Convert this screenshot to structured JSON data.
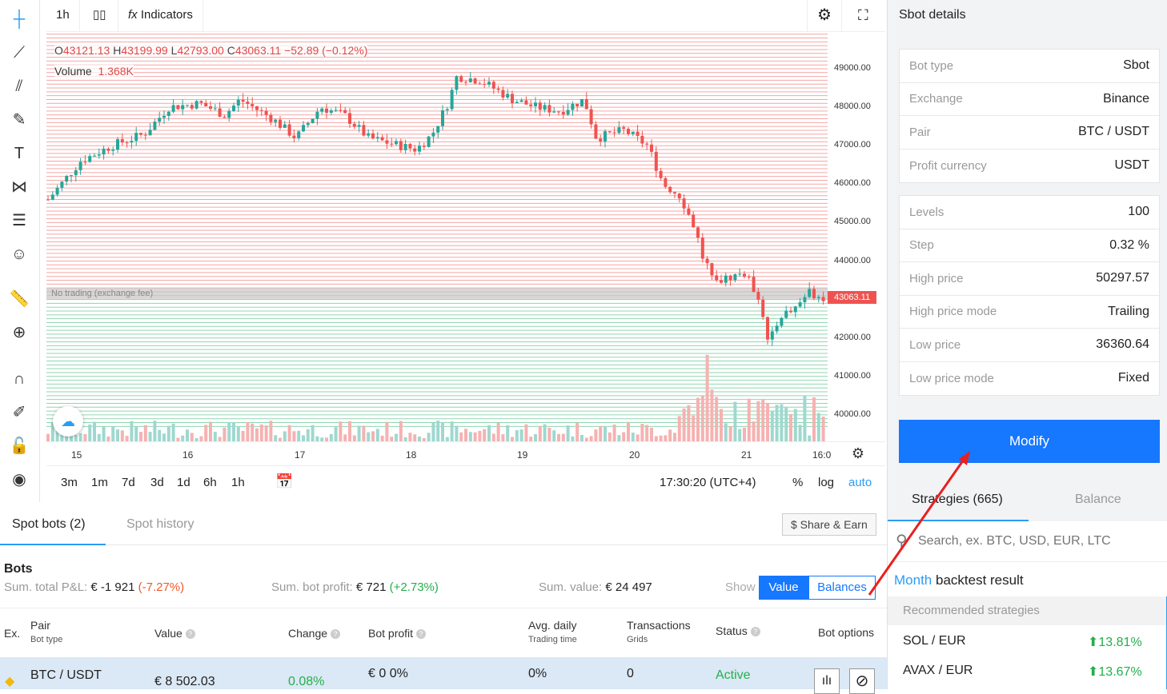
{
  "toolbar": {
    "interval": "1h",
    "indicators": "Indicators"
  },
  "legend": {
    "o_label": "O",
    "o": "43121.13",
    "h_label": "H",
    "h": "43199.99",
    "l_label": "L",
    "l": "42793.00",
    "c_label": "C",
    "c": "43063.11",
    "change": "−52.89 (−0.12%)",
    "volume_label": "Volume",
    "volume": "1.368K"
  },
  "chart_data": {
    "type": "candlestick",
    "ylim": [
      39600,
      49900
    ],
    "price_ticks": [
      "49000.00",
      "48000.00",
      "47000.00",
      "46000.00",
      "45000.00",
      "44000.00",
      "42000.00",
      "41000.00",
      "40000.00"
    ],
    "time_ticks": [
      "15",
      "16",
      "17",
      "18",
      "19",
      "20",
      "21",
      "16:0"
    ],
    "last_price": "43063.11",
    "no_trading_label": "No trading (exchange fee)",
    "no_trading_band": [
      43000,
      43300
    ],
    "path_x_days": [
      14.75,
      15.04,
      15.32,
      15.61,
      15.83,
      16.11,
      16.33,
      16.47,
      16.76,
      16.97,
      17.19,
      17.4,
      17.62,
      17.9,
      18.05,
      18.19,
      18.33,
      18.41,
      18.62,
      18.91,
      19.12,
      19.34,
      19.55,
      19.66,
      19.91,
      20.12,
      20.26,
      20.41,
      20.55,
      20.62,
      20.77,
      20.98,
      21.13,
      21.2,
      21.31,
      21.41,
      21.56,
      21.7
    ],
    "path_close": [
      45600,
      46600,
      47000,
      47300,
      48000,
      48100,
      47800,
      48200,
      47700,
      47200,
      48000,
      47800,
      47200,
      47000,
      46900,
      47300,
      48100,
      48800,
      48700,
      48200,
      48000,
      47900,
      48200,
      47200,
      47400,
      47000,
      46000,
      45700,
      44800,
      44000,
      43500,
      43700,
      43000,
      41800,
      42600,
      42700,
      43200,
      43063
    ]
  },
  "sidebar_tools": [
    "crosshair",
    "trend-line",
    "fib",
    "brush",
    "text",
    "pattern",
    "measure-lines",
    "emoji",
    "ruler",
    "zoom-in",
    "magnet",
    "lock-draw",
    "unlock",
    "eye"
  ],
  "ranges": [
    "3m",
    "1m",
    "7d",
    "3d",
    "1d",
    "6h",
    "1h"
  ],
  "clock": "17:30:20 (UTC+4)",
  "scale_opts": {
    "percent": "%",
    "log": "log",
    "auto": "auto"
  },
  "tabs": {
    "spot_bots": "Spot bots (2)",
    "spot_history": "Spot history",
    "share": "$ Share & Earn"
  },
  "bots": {
    "title": "Bots",
    "pnl_label": "Sum. total P&L:",
    "pnl": "€ -1 921",
    "pnl_pct": "(-7.27%)",
    "profit_label": "Sum. bot profit:",
    "profit": "€ 721",
    "profit_pct": "(+2.73%)",
    "value_label": "Sum. value:",
    "value": "€ 24 497",
    "show": "Show",
    "show_value": "Value",
    "show_balances": "Balances",
    "cols": {
      "ex": "Ex.",
      "pair": "Pair",
      "bottype": "Bot type",
      "value": "Value",
      "change": "Change",
      "botprofit": "Bot profit",
      "avg": "Avg. daily",
      "trading": "Trading time",
      "tx": "Transactions",
      "grids": "Grids",
      "status": "Status",
      "options": "Bot options"
    },
    "rows": [
      {
        "pair": "BTC / USDT",
        "value": "€ 8 502.03",
        "change": "0.08%",
        "profit": "€ 0 0%",
        "avg": "0%",
        "tx": "0",
        "status": "Active"
      }
    ]
  },
  "details": {
    "title": "Sbot details",
    "group1": [
      {
        "label": "Bot type",
        "value": "Sbot"
      },
      {
        "label": "Exchange",
        "value": "Binance"
      },
      {
        "label": "Pair",
        "value": "BTC / USDT"
      },
      {
        "label": "Profit currency",
        "value": "USDT"
      }
    ],
    "group2": [
      {
        "label": "Levels",
        "value": "100"
      },
      {
        "label": "Step",
        "value": "0.32 %"
      },
      {
        "label": "High price",
        "value": "50297.57"
      },
      {
        "label": "High price mode",
        "value": "Trailing"
      },
      {
        "label": "Low price",
        "value": "36360.64"
      },
      {
        "label": "Low price mode",
        "value": "Fixed"
      }
    ],
    "modify": "Modify"
  },
  "strategies": {
    "tab1": "Strategies (665)",
    "tab2": "Balance",
    "search_placeholder": "Search, ex. BTC, USD, EUR, LTC",
    "period": "Month",
    "backtest": "backtest result",
    "recommended": "Recommended strategies",
    "items": [
      {
        "pair": "SOL / EUR",
        "pct": "13.81%"
      },
      {
        "pair": "AVAX / EUR",
        "pct": "13.67%"
      }
    ]
  },
  "colors": {
    "up": "#26a69a",
    "down": "#ef5350",
    "accent": "#1677ff",
    "positive": "#22b04b",
    "negative": "#f05a28",
    "annotation_arrow": "#e8201e"
  }
}
